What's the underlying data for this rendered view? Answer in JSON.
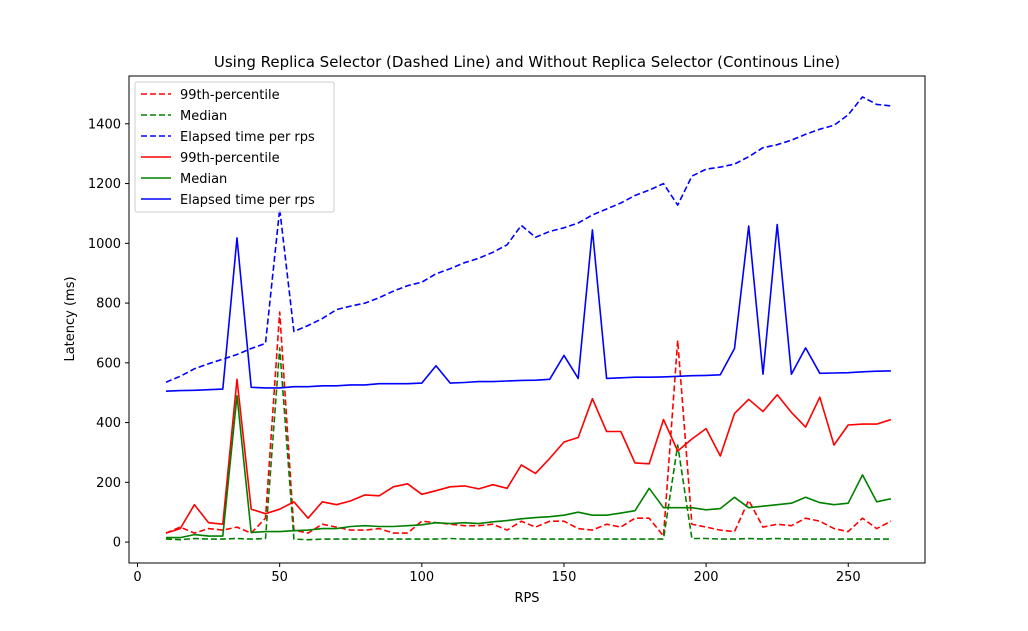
{
  "chart_data": {
    "type": "line",
    "title": "Using Replica Selector (Dashed Line) and Without Replica Selector (Continous Line)",
    "xlabel": "RPS",
    "ylabel": "Latency (ms)",
    "xlim": [
      -3,
      277
    ],
    "ylim": [
      -70,
      1560
    ],
    "xticks": [
      0,
      50,
      100,
      150,
      200,
      250
    ],
    "yticks": [
      0,
      200,
      400,
      600,
      800,
      1000,
      1200,
      1400
    ],
    "grid": false,
    "legend_position": "top-left",
    "x": [
      10,
      15,
      20,
      25,
      30,
      35,
      40,
      45,
      50,
      55,
      60,
      65,
      70,
      75,
      80,
      85,
      90,
      95,
      100,
      105,
      110,
      115,
      120,
      125,
      130,
      135,
      140,
      145,
      150,
      155,
      160,
      165,
      170,
      175,
      180,
      185,
      190,
      195,
      200,
      205,
      210,
      215,
      220,
      225,
      230,
      235,
      240,
      245,
      250,
      255,
      260,
      265
    ],
    "series": [
      {
        "name": "99th-percentile",
        "color": "#ff0000",
        "style": "dashed",
        "values": [
          30,
          50,
          30,
          45,
          40,
          50,
          30,
          80,
          770,
          40,
          30,
          60,
          50,
          40,
          40,
          45,
          30,
          30,
          70,
          65,
          60,
          55,
          55,
          60,
          40,
          70,
          50,
          70,
          70,
          45,
          40,
          60,
          50,
          80,
          80,
          20,
          675,
          60,
          50,
          40,
          35,
          140,
          50,
          60,
          55,
          80,
          70,
          45,
          35,
          80,
          45,
          70
        ]
      },
      {
        "name": "Median",
        "color": "#008000",
        "style": "dashed",
        "values": [
          10,
          8,
          12,
          10,
          10,
          12,
          10,
          12,
          650,
          10,
          8,
          10,
          10,
          10,
          10,
          10,
          10,
          10,
          10,
          10,
          12,
          10,
          10,
          10,
          10,
          12,
          10,
          10,
          10,
          10,
          10,
          10,
          10,
          10,
          10,
          10,
          325,
          12,
          12,
          10,
          10,
          12,
          10,
          12,
          10,
          10,
          10,
          10,
          10,
          10,
          10,
          10
        ]
      },
      {
        "name": "Elapsed time per rps",
        "color": "#0000ff",
        "style": "dashed",
        "values": [
          535,
          555,
          580,
          597,
          612,
          628,
          648,
          665,
          1115,
          705,
          725,
          748,
          778,
          790,
          800,
          818,
          840,
          858,
          870,
          898,
          915,
          935,
          950,
          970,
          995,
          1060,
          1020,
          1040,
          1052,
          1068,
          1095,
          1115,
          1135,
          1160,
          1178,
          1200,
          1128,
          1225,
          1248,
          1255,
          1265,
          1290,
          1320,
          1330,
          1345,
          1365,
          1382,
          1395,
          1430,
          1490,
          1465,
          1460
        ]
      },
      {
        "name": "99th-percentile",
        "color": "#ff0000",
        "style": "solid",
        "values": [
          30,
          45,
          125,
          65,
          60,
          545,
          110,
          95,
          110,
          135,
          80,
          135,
          125,
          138,
          158,
          155,
          185,
          195,
          160,
          172,
          185,
          188,
          178,
          192,
          180,
          258,
          230,
          280,
          335,
          350,
          480,
          370,
          370,
          265,
          262,
          410,
          305,
          345,
          380,
          288,
          430,
          478,
          437,
          493,
          434,
          385,
          485,
          325,
          392,
          395,
          395,
          410
        ]
      },
      {
        "name": "Median",
        "color": "#008000",
        "style": "solid",
        "values": [
          15,
          15,
          25,
          20,
          20,
          490,
          32,
          35,
          35,
          38,
          40,
          45,
          45,
          52,
          55,
          52,
          52,
          55,
          58,
          65,
          62,
          65,
          62,
          68,
          72,
          78,
          82,
          85,
          90,
          100,
          90,
          90,
          97,
          105,
          180,
          115,
          115,
          115,
          108,
          112,
          150,
          115,
          120,
          125,
          130,
          150,
          132,
          125,
          130,
          225,
          135,
          145
        ]
      },
      {
        "name": "Elapsed time per rps",
        "color": "#0000ff",
        "style": "solid",
        "values": [
          505,
          507,
          508,
          510,
          512,
          1018,
          518,
          516,
          516,
          520,
          520,
          523,
          523,
          526,
          526,
          530,
          530,
          530,
          532,
          590,
          532,
          534,
          537,
          537,
          539,
          541,
          542,
          545,
          625,
          548,
          1045,
          548,
          550,
          552,
          552,
          553,
          555,
          557,
          558,
          560,
          648,
          1058,
          562,
          1063,
          562,
          650,
          565,
          566,
          567,
          570,
          572,
          573
        ]
      }
    ]
  }
}
